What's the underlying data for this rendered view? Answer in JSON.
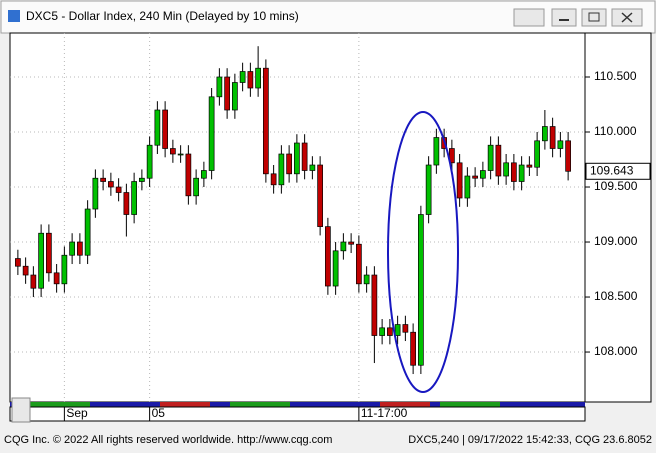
{
  "chart_data": {
    "type": "candlestick",
    "title": "DXC5 - Dollar Index, 240 Min (Delayed by 10 mins)",
    "categories": [
      null,
      null,
      null,
      null,
      null,
      null,
      "Sep",
      null,
      null,
      null,
      null,
      null,
      null,
      null,
      null,
      null,
      null,
      "05",
      null,
      null,
      null,
      null,
      null,
      null,
      null,
      null,
      null,
      null,
      null,
      null,
      null,
      null,
      null,
      null,
      null,
      null,
      null,
      null,
      null,
      null,
      null,
      null,
      null,
      null,
      "11-17:00",
      null,
      null,
      null,
      null,
      null,
      null,
      null,
      null,
      null,
      null,
      null,
      null,
      null,
      null,
      null,
      null,
      null,
      null,
      null,
      null,
      null,
      null,
      null,
      null,
      null,
      null,
      null
    ],
    "open": [
      108.85,
      108.78,
      108.7,
      108.58,
      109.08,
      108.72,
      108.62,
      108.88,
      109.0,
      108.88,
      109.3,
      109.58,
      109.55,
      109.5,
      109.45,
      109.25,
      109.55,
      109.58,
      109.88,
      110.2,
      109.85,
      109.8,
      109.8,
      109.42,
      109.58,
      109.65,
      110.32,
      110.5,
      110.2,
      110.45,
      110.55,
      110.4,
      110.58,
      109.62,
      109.52,
      109.8,
      109.62,
      109.9,
      109.65,
      109.7,
      109.14,
      108.6,
      108.92,
      109.0,
      108.98,
      108.62,
      108.7,
      108.15,
      108.22,
      108.15,
      108.25,
      108.18,
      107.88,
      109.25,
      109.7,
      109.95,
      109.85,
      109.72,
      109.4,
      109.6,
      109.58,
      109.65,
      109.88,
      109.6,
      109.72,
      109.55,
      109.7,
      109.68,
      109.92,
      110.05,
      109.85,
      109.92
    ],
    "high": [
      108.93,
      108.86,
      108.78,
      109.16,
      109.16,
      108.8,
      108.96,
      109.08,
      109.08,
      109.38,
      109.66,
      109.66,
      109.63,
      109.58,
      109.53,
      109.63,
      109.66,
      109.96,
      110.28,
      110.28,
      109.93,
      109.88,
      109.88,
      109.66,
      109.73,
      110.4,
      110.58,
      110.58,
      110.53,
      110.63,
      110.63,
      110.78,
      110.66,
      109.7,
      109.88,
      109.88,
      109.98,
      109.98,
      109.78,
      109.78,
      109.22,
      109.0,
      109.08,
      109.08,
      109.06,
      108.78,
      108.78,
      108.3,
      108.3,
      108.33,
      108.33,
      108.26,
      109.33,
      109.78,
      110.03,
      110.03,
      109.93,
      109.8,
      109.68,
      109.68,
      109.73,
      109.96,
      109.96,
      109.8,
      109.8,
      109.78,
      109.78,
      110.0,
      110.2,
      110.13,
      110.0,
      110.0
    ],
    "low": [
      108.7,
      108.62,
      108.5,
      108.5,
      108.64,
      108.54,
      108.54,
      108.8,
      108.8,
      108.8,
      109.22,
      109.47,
      109.42,
      109.37,
      109.05,
      109.17,
      109.47,
      109.5,
      109.8,
      109.77,
      109.72,
      109.72,
      109.34,
      109.34,
      109.5,
      109.57,
      110.24,
      110.12,
      110.12,
      110.37,
      110.32,
      110.32,
      109.54,
      109.44,
      109.44,
      109.54,
      109.54,
      109.57,
      109.57,
      109.06,
      108.52,
      108.52,
      108.84,
      108.9,
      108.54,
      108.54,
      107.9,
      108.07,
      108.07,
      108.07,
      108.1,
      107.8,
      107.8,
      109.17,
      109.62,
      109.77,
      109.64,
      109.32,
      109.32,
      109.5,
      109.5,
      109.57,
      109.52,
      109.52,
      109.47,
      109.47,
      109.6,
      109.6,
      109.84,
      109.77,
      109.77,
      109.56
    ],
    "close": [
      108.78,
      108.7,
      108.58,
      109.08,
      108.72,
      108.62,
      108.88,
      109.0,
      108.88,
      109.3,
      109.58,
      109.55,
      109.5,
      109.45,
      109.25,
      109.55,
      109.58,
      109.88,
      110.2,
      109.85,
      109.8,
      109.8,
      109.42,
      109.58,
      109.65,
      110.32,
      110.5,
      110.2,
      110.45,
      110.55,
      110.4,
      110.58,
      109.62,
      109.52,
      109.8,
      109.62,
      109.9,
      109.65,
      109.7,
      109.14,
      108.6,
      108.92,
      109.0,
      108.98,
      108.62,
      108.7,
      108.15,
      108.22,
      108.15,
      108.25,
      108.18,
      107.88,
      109.25,
      109.7,
      109.95,
      109.85,
      109.72,
      109.4,
      109.6,
      109.58,
      109.65,
      109.88,
      109.6,
      109.72,
      109.55,
      109.7,
      109.68,
      109.92,
      110.05,
      109.85,
      109.92,
      109.643
    ],
    "up_color": "#00c000",
    "down_color": "#c00000",
    "ylim": [
      107.564,
      110.9
    ],
    "yticks": [
      {
        "value": 108,
        "label": "108.000"
      },
      {
        "value": 108.5,
        "label": "108.500"
      },
      {
        "value": 109,
        "label": "109.000"
      },
      {
        "value": 109.5,
        "label": "109.500"
      },
      {
        "value": 110,
        "label": "110.000"
      },
      {
        "value": 110.5,
        "label": "110.500"
      }
    ],
    "grid": true
  },
  "footer": {
    "left": "CQG Inc. © 2022 All rights reserved worldwide. http://www.cqg.com",
    "right": "DXC5,240 | 09/17/2022 15:42:33, CQG 23.6.8052"
  }
}
